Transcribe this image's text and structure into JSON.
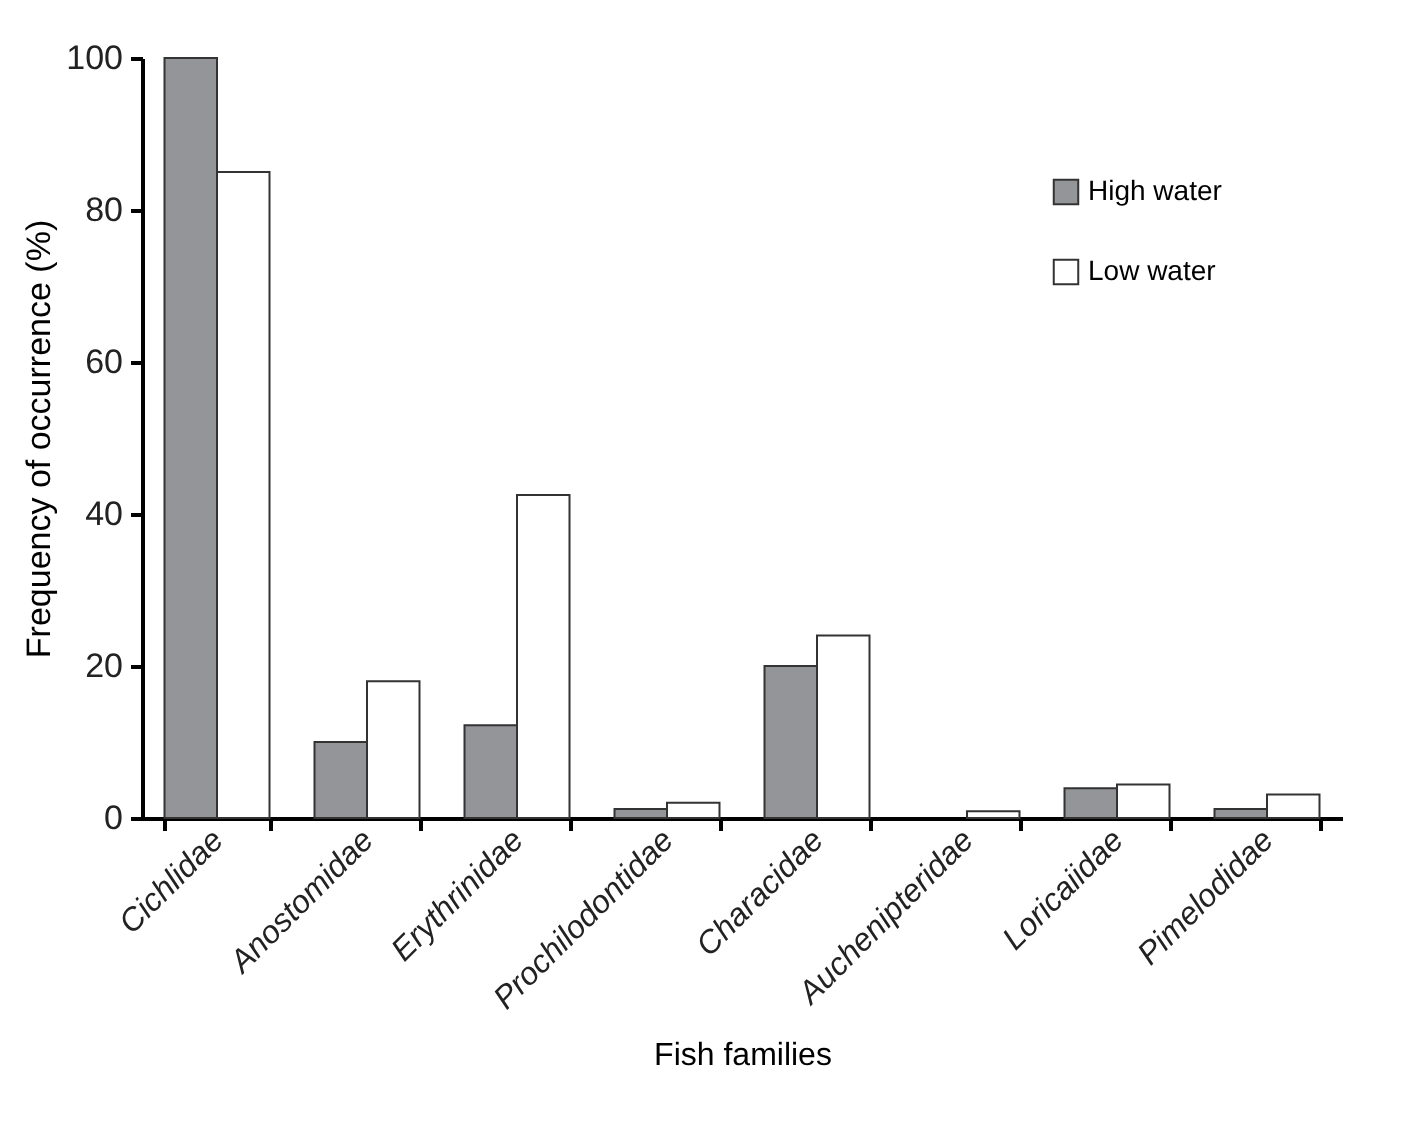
{
  "chart_data": {
    "type": "bar",
    "xlabel": "Fish families",
    "ylabel": "Frequency of occurrence (%)",
    "categories": [
      "Cichlidae",
      "Anostomidae",
      "Erythrinidae",
      "Prochilodontidae",
      "Characidae",
      "Auchenipteridae",
      "Loricaiidae",
      "Pimelodidae"
    ],
    "series": [
      {
        "name": "High water",
        "color": "#939598",
        "values": [
          100,
          10,
          12.2,
          1.2,
          20,
          null,
          3.9,
          1.2
        ]
      },
      {
        "name": "Low water",
        "color": "#ffffff",
        "values": [
          85,
          18,
          42.5,
          2,
          24,
          0.9,
          4.4,
          3.1
        ]
      }
    ],
    "ylim": [
      0,
      100
    ],
    "yticks": [
      0,
      20,
      40,
      60,
      80,
      100
    ],
    "grid": false,
    "legend": "top right"
  }
}
